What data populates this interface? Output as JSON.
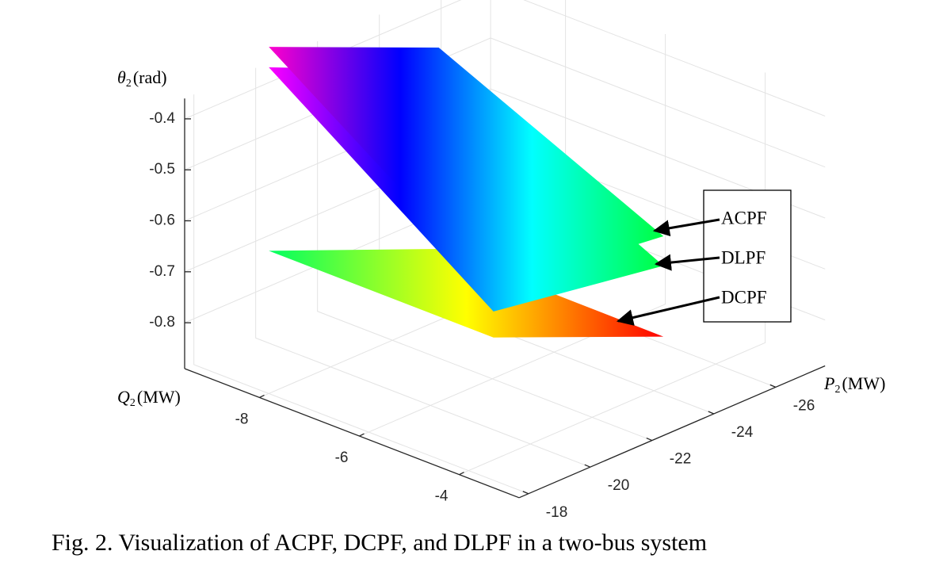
{
  "chart_data": {
    "type": "surface3d",
    "caption": "Fig. 2. Visualization of ACPF, DCPF, and DLPF in a two-bus system",
    "zlabel": {
      "symbol": "θ",
      "sub": "2",
      "unit": "(rad)"
    },
    "xlabel": {
      "symbol": "Q",
      "sub": "2",
      "unit": "(MW)"
    },
    "ylabel": {
      "symbol": "P",
      "sub": "2",
      "unit": "(MW)"
    },
    "xlim": [
      -9.5,
      -2.8
    ],
    "xticks": [
      -8,
      -6,
      -4
    ],
    "ylim": [
      -17.7,
      -27.6
    ],
    "yticks": [
      -18,
      -20,
      -22,
      -24,
      -26
    ],
    "zlim": [
      -0.89,
      -0.36
    ],
    "zticks": [
      -0.4,
      -0.5,
      -0.6,
      -0.7,
      -0.8
    ],
    "grid": true,
    "x": [
      -8,
      -3.5
    ],
    "y": [
      -18,
      -23.5
    ],
    "series": [
      {
        "name": "DCPF",
        "colors": [
          "#00ff60",
          "#ffff00",
          "#ff0000"
        ],
        "z": [
          [
            -0.61,
            -0.75
          ],
          [
            -0.61,
            -0.752
          ]
        ]
      },
      {
        "name": "DLPF",
        "colors": [
          "#ff00ff",
          "#0000ff",
          "#00ffff",
          "#00ff40"
        ],
        "z": [
          [
            -0.25,
            -0.4
          ],
          [
            -0.559,
            -0.613
          ]
        ]
      },
      {
        "name": "ACPF",
        "colors": [
          "#ff00cc",
          "#0000ff",
          "#00ffff",
          "#00ff40"
        ],
        "z": [
          [
            -0.21,
            -0.355
          ],
          [
            -0.515,
            -0.555
          ]
        ]
      }
    ]
  }
}
